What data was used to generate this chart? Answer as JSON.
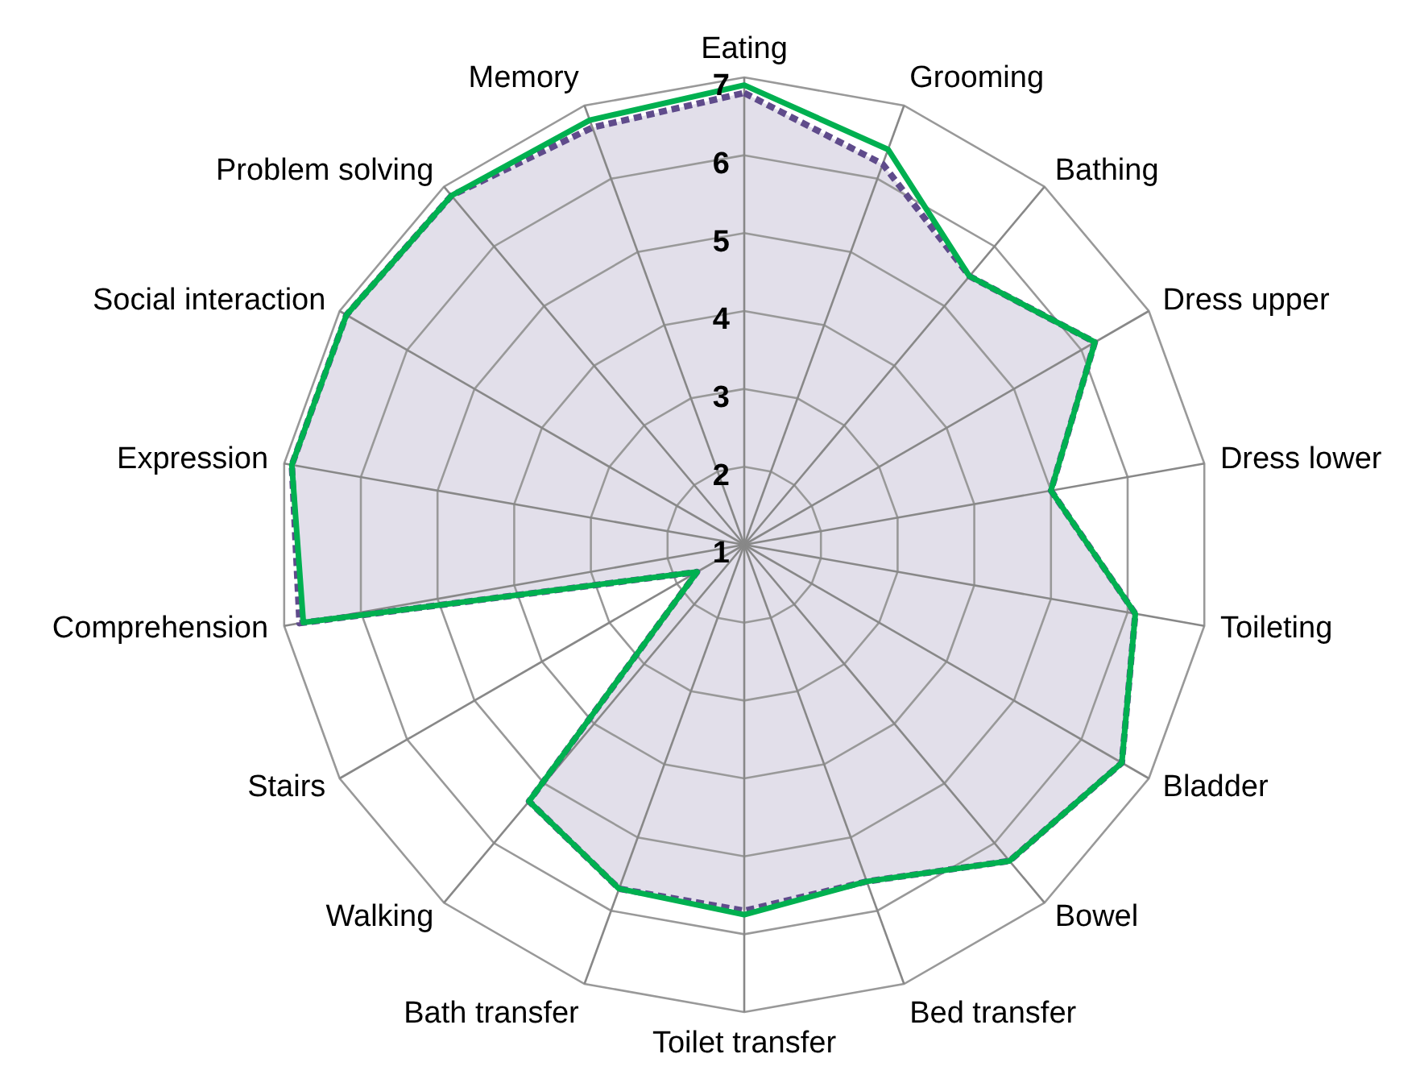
{
  "chart_data": {
    "type": "radar",
    "categories": [
      "Eating",
      "Grooming",
      "Bathing",
      "Dress upper",
      "Dress lower",
      "Toileting",
      "Bladder",
      "Bowel",
      "Bed transfer",
      "Toilet transfer",
      "Bath transfer",
      "Walking",
      "Stairs",
      "Comprehension",
      "Expression",
      "Social interaction",
      "Problem solving",
      "Memory"
    ],
    "series": [
      {
        "color": "#5f4b8b",
        "line_style": "dashed",
        "values": [
          6.8,
          6.2,
          5.5,
          6.2,
          5.0,
          6.1,
          6.6,
          6.3,
          5.6,
          5.7,
          5.7,
          5.3,
          1.7,
          6.8,
          6.9,
          6.9,
          6.85,
          6.7
        ]
      },
      {
        "color": "#00b050",
        "line_style": "solid",
        "values": [
          6.9,
          6.4,
          5.5,
          6.2,
          5.0,
          6.1,
          6.6,
          6.3,
          5.6,
          5.75,
          5.7,
          5.3,
          1.7,
          6.75,
          6.9,
          6.9,
          6.85,
          6.8
        ]
      }
    ],
    "ylim": [
      1,
      7
    ],
    "yticks": [
      1,
      2,
      3,
      4,
      5,
      6,
      7
    ],
    "grid": true
  }
}
